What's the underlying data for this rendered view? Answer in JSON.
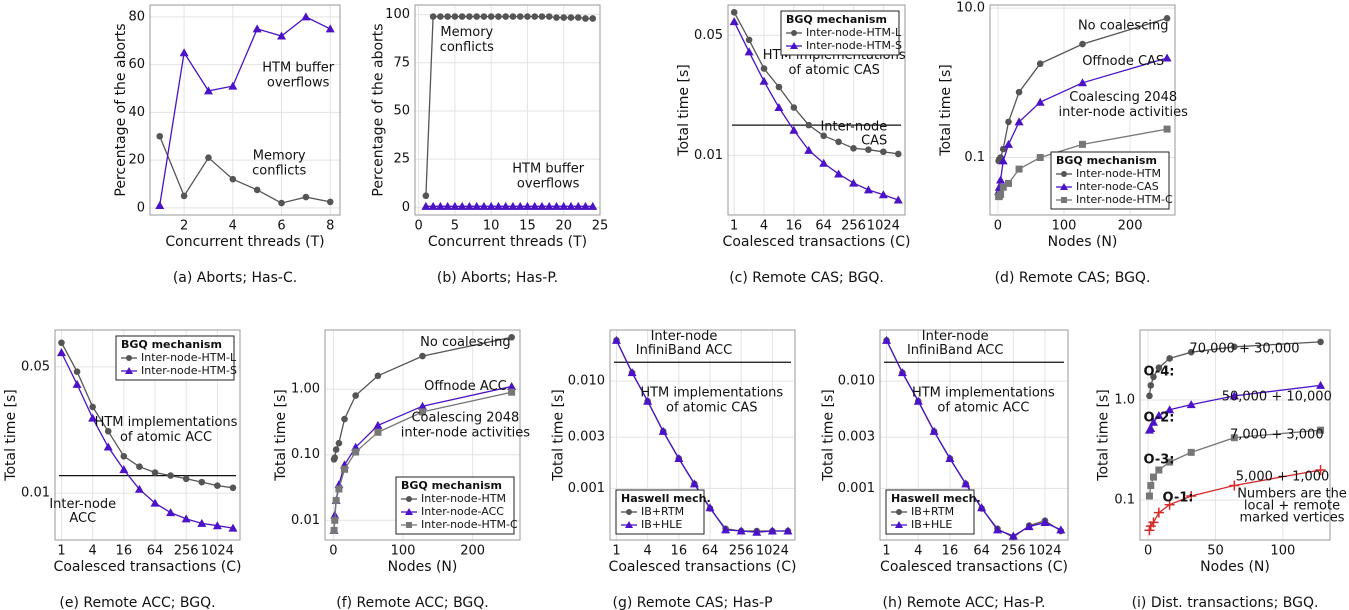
{
  "chart_data": [
    {
      "type": "line",
      "caption": "(a) Aborts; Has-C.",
      "xlabel": "Concurrent threads (T)",
      "ylabel": "Percentage of the aborts",
      "x": [
        1,
        2,
        3,
        4,
        5,
        6,
        7,
        8
      ],
      "xlim": [
        0.6,
        8.4
      ],
      "xticks": [
        2,
        4,
        6,
        8
      ],
      "ylim": [
        -3,
        85
      ],
      "yticks": [
        0,
        20,
        40,
        60,
        80
      ],
      "grid": true,
      "series": [
        {
          "color": "#555555",
          "marker": "circle",
          "values": [
            30,
            5,
            21,
            12,
            7.5,
            2,
            4.5,
            2.5
          ]
        },
        {
          "color": "#4b12c8",
          "marker": "triangle",
          "values": [
            1,
            65,
            49,
            51,
            75,
            72,
            80,
            75
          ]
        }
      ],
      "annotations": [
        [
          "HTM buffer",
          "overflows"
        ],
        [
          "Memory",
          "conflicts"
        ]
      ]
    },
    {
      "type": "line",
      "caption": "(b) Aborts; Has-P.",
      "xlabel": "Concurrent threads (T)",
      "ylabel": "Percentage of the aborts",
      "x": [
        1,
        2,
        3,
        4,
        5,
        6,
        7,
        8,
        9,
        10,
        11,
        12,
        13,
        14,
        15,
        16,
        17,
        18,
        19,
        20,
        21,
        22,
        23,
        24
      ],
      "xlim": [
        -0.5,
        25
      ],
      "xticks": [
        0,
        5,
        10,
        15,
        20,
        25
      ],
      "ylim": [
        -4,
        105
      ],
      "yticks": [
        0,
        25,
        50,
        75,
        100
      ],
      "grid": true,
      "series": [
        {
          "color": "#555555",
          "marker": "circle",
          "values": [
            6,
            99,
            99,
            99,
            99,
            99,
            99,
            99,
            99,
            99,
            99,
            99,
            99,
            99,
            99,
            99,
            99,
            99,
            98.5,
            98.5,
            98.5,
            98.5,
            98,
            98
          ]
        },
        {
          "color": "#4b12c8",
          "marker": "triangle",
          "values": [
            0.5,
            0.5,
            0.5,
            0.5,
            0.5,
            0.5,
            0.5,
            0.5,
            0.5,
            0.5,
            0.5,
            0.5,
            0.5,
            0.5,
            0.5,
            0.5,
            0.5,
            0.5,
            0.5,
            0.5,
            0.5,
            0.5,
            0.5,
            0.5
          ]
        }
      ],
      "annotations": [
        [
          "Memory",
          "conflicts"
        ],
        [
          "HTM buffer",
          "overflows"
        ]
      ]
    },
    {
      "type": "line",
      "caption": "(c) Remote CAS; BGQ.",
      "xlabel": "Coalesced transactions (C)",
      "ylabel": "Total time [s]",
      "xlog": true,
      "ylog": true,
      "x": [
        1,
        2,
        4,
        8,
        16,
        32,
        64,
        128,
        256,
        512,
        1024,
        2048
      ],
      "xlim": [
        0.75,
        2800
      ],
      "xticks": [
        1,
        4,
        16,
        64,
        256,
        1024
      ],
      "ylim": [
        0.0045,
        0.075
      ],
      "yticks": [
        0.01,
        0.05
      ],
      "grid": true,
      "series": [
        {
          "name": "Inter-node-HTM-L",
          "color": "#555555",
          "marker": "circle",
          "values": [
            0.068,
            0.047,
            0.032,
            0.025,
            0.019,
            0.015,
            0.013,
            0.012,
            0.011,
            0.0108,
            0.0105,
            0.0102
          ]
        },
        {
          "name": "Inter-node-HTM-S",
          "color": "#4b12c8",
          "marker": "triangle",
          "values": [
            0.06,
            0.04,
            0.027,
            0.019,
            0.014,
            0.0107,
            0.009,
            0.0078,
            0.0069,
            0.0063,
            0.0059,
            0.0055
          ]
        }
      ],
      "hlines": [
        {
          "value": 0.015,
          "label": [
            "Inter-node",
            "CAS"
          ]
        }
      ],
      "annotations": [
        [
          "HTM implementations",
          "of atomic CAS"
        ]
      ],
      "legend": {
        "title": "BGQ mechanism",
        "loc": "upper right"
      }
    },
    {
      "type": "line",
      "caption": "(d) Remote CAS; BGQ.",
      "xlabel": "Nodes (N)",
      "ylabel": "Total time [s]",
      "ylog": true,
      "x": [
        1,
        2,
        4,
        8,
        16,
        32,
        64,
        128,
        256
      ],
      "xlim": [
        -12,
        268
      ],
      "xticks": [
        0,
        100,
        200
      ],
      "ylim": [
        0.017,
        11
      ],
      "yticks": [
        0.1,
        {
          "value": 10,
          "label": "10.0"
        }
      ],
      "grid": true,
      "series": [
        {
          "name": "Inter-node-HTM",
          "color": "#555555",
          "marker": "circle",
          "values": [
            0.09,
            0.095,
            0.1,
            0.13,
            0.3,
            0.75,
            1.8,
            3.3,
            7.3
          ]
        },
        {
          "name": "Inter-node-CAS",
          "color": "#4b12c8",
          "marker": "triangle",
          "values": [
            0.035,
            0.04,
            0.05,
            0.09,
            0.15,
            0.3,
            0.55,
            1.0,
            2.15
          ]
        },
        {
          "name": "Inter-node-HTM-C",
          "color": "#777777",
          "marker": "square",
          "values": [
            0.03,
            0.03,
            0.032,
            0.04,
            0.045,
            0.07,
            0.1,
            0.15,
            0.24
          ]
        }
      ],
      "annotations": [
        [
          "No coalescing"
        ],
        [
          "Offnode CAS"
        ],
        [
          "Coalescing 2048",
          "inter-node activities"
        ]
      ],
      "legend": {
        "title": "BGQ mechanism",
        "loc": "lower right"
      }
    },
    {
      "type": "line",
      "caption": "(e) Remote ACC; BGQ.",
      "xlabel": "Coalesced transactions (C)",
      "ylabel": "Total time [s]",
      "xlog": true,
      "ylog": true,
      "x": [
        1,
        2,
        4,
        8,
        16,
        32,
        64,
        128,
        256,
        512,
        1024,
        2048
      ],
      "xlim": [
        0.75,
        2800
      ],
      "xticks": [
        1,
        4,
        16,
        64,
        256,
        1024
      ],
      "ylim": [
        0.0055,
        0.08
      ],
      "yticks": [
        0.01,
        0.05
      ],
      "grid": true,
      "series": [
        {
          "name": "Inter-node-HTM-L",
          "color": "#555555",
          "marker": "circle",
          "values": [
            0.068,
            0.047,
            0.03,
            0.022,
            0.016,
            0.014,
            0.013,
            0.0125,
            0.012,
            0.0115,
            0.011,
            0.0107
          ]
        },
        {
          "name": "Inter-node-HTM-S",
          "color": "#4b12c8",
          "marker": "triangle",
          "values": [
            0.06,
            0.04,
            0.026,
            0.018,
            0.0135,
            0.0105,
            0.0088,
            0.0078,
            0.0072,
            0.0068,
            0.0066,
            0.0064
          ]
        }
      ],
      "hlines": [
        {
          "value": 0.0125,
          "label": [
            "Inter-node",
            "ACC"
          ]
        }
      ],
      "annotations": [
        [
          "HTM implementations",
          "of atomic ACC"
        ]
      ],
      "legend": {
        "title": "BGQ mechanism",
        "loc": "upper right"
      }
    },
    {
      "type": "line",
      "caption": "(f) Remote ACC; BGQ.",
      "xlabel": "Nodes (N)",
      "ylabel": "Total time [s]",
      "ylog": true,
      "x": [
        1,
        2,
        4,
        8,
        16,
        32,
        64,
        128,
        256
      ],
      "xlim": [
        -12,
        268
      ],
      "xticks": [
        0,
        100,
        200
      ],
      "ylim": [
        0.005,
        8
      ],
      "yticks": [
        0.01,
        {
          "value": 0.1,
          "label": "0.10"
        },
        {
          "value": 1,
          "label": "1.00"
        }
      ],
      "grid": true,
      "series": [
        {
          "name": "Inter-node-HTM",
          "color": "#555555",
          "marker": "circle",
          "values": [
            0.085,
            0.09,
            0.12,
            0.15,
            0.35,
            0.8,
            1.6,
            3.2,
            6.2
          ]
        },
        {
          "name": "Inter-node-ACC",
          "color": "#4b12c8",
          "marker": "triangle",
          "values": [
            0.007,
            0.012,
            0.02,
            0.035,
            0.07,
            0.13,
            0.28,
            0.55,
            1.1
          ]
        },
        {
          "name": "Inter-node-HTM-C",
          "color": "#777777",
          "marker": "square",
          "values": [
            0.007,
            0.01,
            0.02,
            0.03,
            0.06,
            0.11,
            0.22,
            0.45,
            0.9
          ]
        }
      ],
      "annotations": [
        [
          "No coalescing"
        ],
        [
          "Offnode ACC"
        ],
        [
          "Coalescing 2048",
          "inter-node activities"
        ]
      ],
      "legend": {
        "title": "BGQ mechanism",
        "loc": "lower right"
      }
    },
    {
      "type": "line",
      "caption": "(g) Remote CAS; Has-P",
      "xlabel": "Coalesced transactions (C)",
      "ylabel": "Total time [s]",
      "xlog": true,
      "ylog": true,
      "x": [
        1,
        2,
        4,
        8,
        16,
        32,
        64,
        128,
        256,
        512,
        1024,
        2048
      ],
      "xlim": [
        0.75,
        2800
      ],
      "xticks": [
        1,
        4,
        16,
        64,
        256,
        1024
      ],
      "ylim": [
        0.00033,
        0.03
      ],
      "yticks": [
        0.001,
        0.003,
        {
          "value": 0.01,
          "label": "0.010"
        }
      ],
      "grid": true,
      "series": [
        {
          "name": "IB+RTM",
          "color": "#555555",
          "marker": "circle",
          "values": [
            0.024,
            0.012,
            0.0065,
            0.0034,
            0.0019,
            0.0011,
            0.00065,
            0.00042,
            0.0004,
            0.0004,
            0.0004,
            0.0004
          ]
        },
        {
          "name": "IB+HLE",
          "color": "#4b12c8",
          "marker": "triangle",
          "values": [
            0.024,
            0.012,
            0.0065,
            0.0034,
            0.0019,
            0.0011,
            0.00066,
            0.00041,
            0.0004,
            0.00039,
            0.0004,
            0.0004
          ]
        }
      ],
      "hlines": [
        {
          "value": 0.015,
          "label": [
            "Inter-node",
            "InfiniBand ACC"
          ]
        }
      ],
      "annotations": [
        [
          "HTM implementations",
          "of atomic CAS"
        ]
      ],
      "legend": {
        "title": "Haswell mech.",
        "loc": "lower left"
      }
    },
    {
      "type": "line",
      "caption": "(h) Remote ACC; Has-P.",
      "xlabel": "Coalesced transactions (C)",
      "ylabel": "Total time [s]",
      "xlog": true,
      "ylog": true,
      "x": [
        1,
        2,
        4,
        8,
        16,
        32,
        64,
        128,
        256,
        512,
        1024,
        2048
      ],
      "xlim": [
        0.75,
        2800
      ],
      "xticks": [
        1,
        4,
        16,
        64,
        256,
        1024
      ],
      "ylim": [
        0.00033,
        0.03
      ],
      "yticks": [
        0.001,
        0.003,
        {
          "value": 0.01,
          "label": "0.010"
        }
      ],
      "grid": true,
      "series": [
        {
          "name": "IB+RTM",
          "color": "#555555",
          "marker": "circle",
          "values": [
            0.024,
            0.012,
            0.0065,
            0.0034,
            0.0019,
            0.0011,
            0.00065,
            0.00042,
            0.00035,
            0.00045,
            0.0005,
            0.0004
          ]
        },
        {
          "name": "IB+HLE",
          "color": "#4b12c8",
          "marker": "triangle",
          "values": [
            0.024,
            0.012,
            0.0065,
            0.0034,
            0.0019,
            0.0011,
            0.00066,
            0.00041,
            0.00036,
            0.00044,
            0.00048,
            0.00041
          ]
        }
      ],
      "hlines": [
        {
          "value": 0.015,
          "label": [
            "Inter-node",
            "InfiniBand ACC"
          ]
        }
      ],
      "annotations": [
        [
          "HTM implementations",
          "of atomic ACC"
        ]
      ],
      "legend": {
        "title": "Haswell mech.",
        "loc": "lower left"
      }
    },
    {
      "type": "line",
      "caption": "(i) Dist. transactions; BGQ.",
      "xlabel": "Nodes (N)",
      "ylabel": "Total time [s]",
      "ylog": true,
      "x": [
        1,
        2,
        4,
        8,
        16,
        32,
        64,
        128
      ],
      "xlim": [
        -6,
        135
      ],
      "xticks": [
        0,
        50,
        100
      ],
      "ylim": [
        0.04,
        5
      ],
      "yticks": [
        0.1,
        {
          "value": 1,
          "label": "1.0"
        }
      ],
      "grid": true,
      "series": [
        {
          "color": "#555555",
          "marker": "circle",
          "values": [
            1.1,
            1.4,
            1.7,
            2.1,
            2.6,
            3.0,
            3.4,
            3.8
          ]
        },
        {
          "color": "#4b12c8",
          "marker": "triangle",
          "values": [
            0.5,
            0.52,
            0.6,
            0.7,
            0.8,
            0.9,
            1.1,
            1.4
          ]
        },
        {
          "color": "#777777",
          "marker": "square",
          "values": [
            0.11,
            0.14,
            0.17,
            0.2,
            0.24,
            0.3,
            0.42,
            0.5
          ]
        },
        {
          "color": "#d42a2a",
          "marker": "plus",
          "values": [
            0.05,
            0.055,
            0.06,
            0.075,
            0.09,
            0.11,
            0.14,
            0.2
          ]
        }
      ],
      "annotations": [
        [
          "O-4:"
        ],
        [
          "70,000 + 30,000"
        ],
        [
          "O-2:"
        ],
        [
          "50,000 + 10,000"
        ],
        [
          "O-3:"
        ],
        [
          "7,000 + 3,000"
        ],
        [
          "O-1:"
        ],
        [
          "5,000 + 1,000"
        ],
        [
          "Numbers are the",
          "local + remote",
          "marked vertices"
        ]
      ]
    }
  ]
}
